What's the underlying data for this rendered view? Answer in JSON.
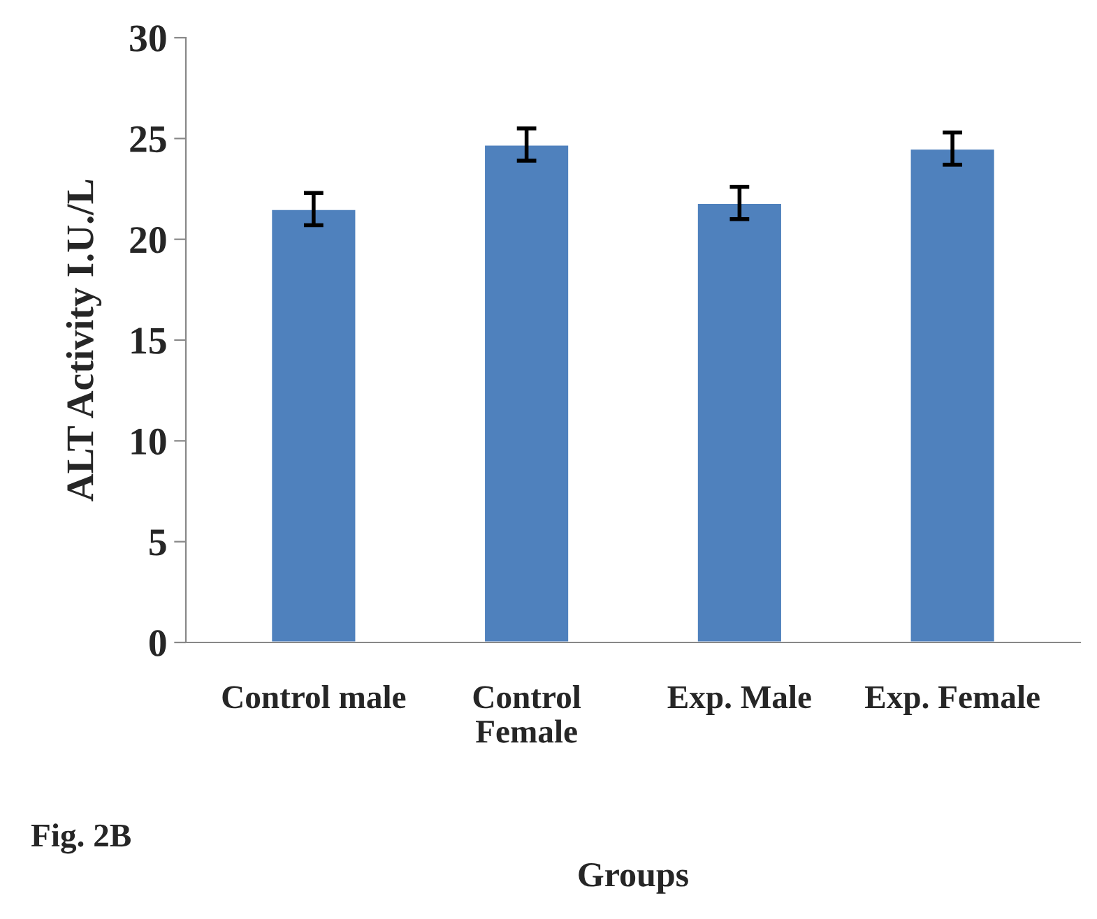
{
  "chart_data": {
    "type": "bar",
    "xlabel": "Groups",
    "ylabel": "ALT Activity I.U./L",
    "categories": [
      "Control male",
      "Control\nFemale",
      "Exp. Male",
      "Exp. Female"
    ],
    "values": [
      21.5,
      24.7,
      21.8,
      24.5
    ],
    "errors": [
      0.8,
      0.8,
      0.8,
      0.8
    ],
    "color": "#4f81bd",
    "ylim": [
      0,
      30
    ],
    "yticks": [
      0,
      5,
      10,
      15,
      20,
      25,
      30
    ],
    "grid": false,
    "legend": false,
    "annotations": [
      "Fig. 2B"
    ]
  }
}
